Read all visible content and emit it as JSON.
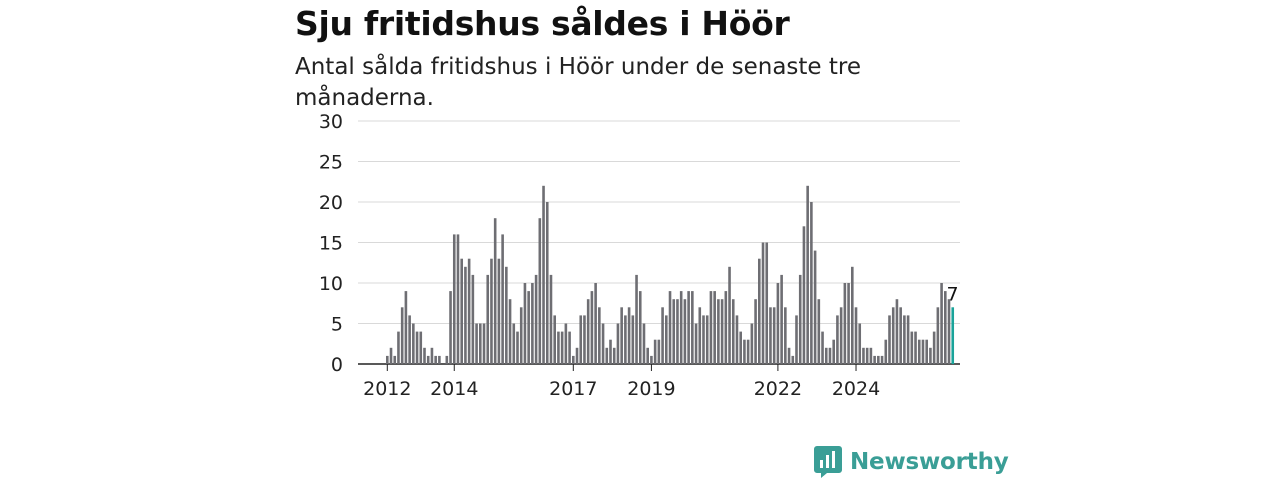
{
  "header": {
    "title": "Sju fritidshus såldes i Höör",
    "subtitle": "Antal sålda fritidshus i Höör under de senaste tre månaderna."
  },
  "brand": {
    "name": "Newsworthy",
    "color": "#3a9e96"
  },
  "colors": {
    "bar": "#6e6e73",
    "highlight": "#1aa39a",
    "grid": "#d9d9d9"
  },
  "chart_data": {
    "type": "bar",
    "title": "Sju fritidshus såldes i Höör",
    "ylim": [
      0,
      30
    ],
    "yticks": [
      0,
      5,
      10,
      15,
      20,
      25,
      30
    ],
    "grid": true,
    "xtick_labels": [
      {
        "label": "2012",
        "index": 0
      },
      {
        "label": "2014",
        "index": 18
      },
      {
        "label": "2017",
        "index": 50
      },
      {
        "label": "2019",
        "index": 71
      },
      {
        "label": "2022",
        "index": 105
      },
      {
        "label": "2024",
        "index": 126
      }
    ],
    "last_value_label": "7",
    "values": [
      1,
      2,
      1,
      4,
      7,
      9,
      6,
      5,
      4,
      4,
      2,
      1,
      2,
      1,
      1,
      0,
      1,
      9,
      16,
      16,
      13,
      12,
      13,
      11,
      5,
      5,
      5,
      11,
      13,
      18,
      13,
      16,
      12,
      8,
      5,
      4,
      7,
      10,
      9,
      10,
      11,
      18,
      22,
      20,
      11,
      6,
      4,
      4,
      5,
      4,
      1,
      2,
      6,
      6,
      8,
      9,
      10,
      7,
      5,
      2,
      3,
      2,
      5,
      7,
      6,
      7,
      6,
      11,
      9,
      5,
      2,
      1,
      3,
      3,
      7,
      6,
      9,
      8,
      8,
      9,
      8,
      9,
      9,
      5,
      7,
      6,
      6,
      9,
      9,
      8,
      8,
      9,
      12,
      8,
      6,
      4,
      3,
      3,
      5,
      8,
      13,
      15,
      15,
      7,
      7,
      10,
      11,
      7,
      2,
      1,
      6,
      11,
      17,
      22,
      20,
      14,
      8,
      4,
      2,
      2,
      3,
      6,
      7,
      10,
      10,
      12,
      7,
      5,
      2,
      2,
      2,
      1,
      1,
      1,
      3,
      6,
      7,
      8,
      7,
      6,
      6,
      4,
      4,
      3,
      3,
      3,
      2,
      4,
      7,
      10,
      9,
      8,
      7
    ]
  }
}
